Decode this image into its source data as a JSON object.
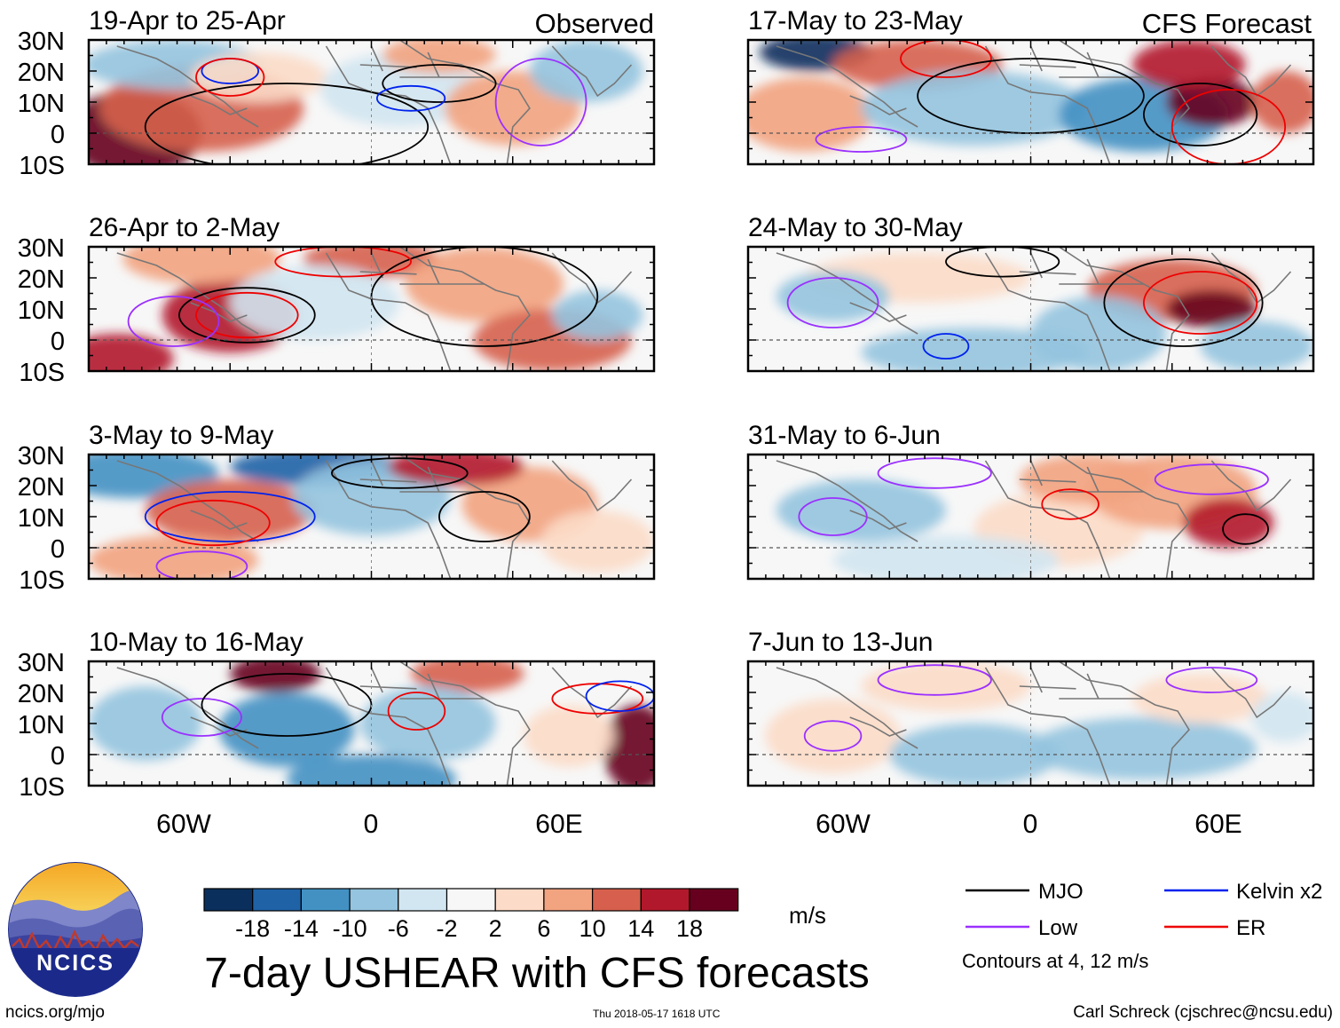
{
  "title": "7-day USHEAR with CFS forecasts",
  "units": "m/s",
  "column_labels": {
    "left": "Observed",
    "right": "CFS Forecast"
  },
  "panels": [
    {
      "period": "19-Apr to 25-Apr",
      "column": "left",
      "row": 0
    },
    {
      "period": "26-Apr to 2-May",
      "column": "left",
      "row": 1
    },
    {
      "period": "3-May to 9-May",
      "column": "left",
      "row": 2
    },
    {
      "period": "10-May to 16-May",
      "column": "left",
      "row": 3
    },
    {
      "period": "17-May to 23-May",
      "column": "right",
      "row": 0
    },
    {
      "period": "24-May to 30-May",
      "column": "right",
      "row": 1
    },
    {
      "period": "31-May to 6-Jun",
      "column": "right",
      "row": 2
    },
    {
      "period": "7-Jun to 13-Jun",
      "column": "right",
      "row": 3
    }
  ],
  "lat_ticks": [
    "30N",
    "20N",
    "10N",
    "0",
    "10S"
  ],
  "lon_ticks": [
    "60W",
    "0",
    "60E"
  ],
  "colorbar": {
    "labels": [
      "-18",
      "-14",
      "-10",
      "-6",
      "-2",
      "2",
      "6",
      "10",
      "14",
      "18"
    ],
    "colors": [
      "#0b2f5c",
      "#1f62a6",
      "#4391c3",
      "#94c4df",
      "#d2e6f1",
      "#f7f7f7",
      "#fcdbc8",
      "#f2a37f",
      "#d6604d",
      "#b2182b",
      "#67001f"
    ]
  },
  "legend": {
    "items": [
      {
        "label": "MJO",
        "color": "#000000"
      },
      {
        "label": "Kelvin x2",
        "color": "#0022ee"
      },
      {
        "label": "Low",
        "color": "#9b30ff"
      },
      {
        "label": "ER",
        "color": "#ee0000"
      }
    ],
    "note": "Contours at 4, 12 m/s"
  },
  "logo": {
    "text": "NCICS"
  },
  "footer": {
    "url": "ncics.org/mjo",
    "timestamp": "Thu 2018-05-17 1618 UTC",
    "credit": "Carl Schreck (cjschrec@ncsu.edu)"
  }
}
